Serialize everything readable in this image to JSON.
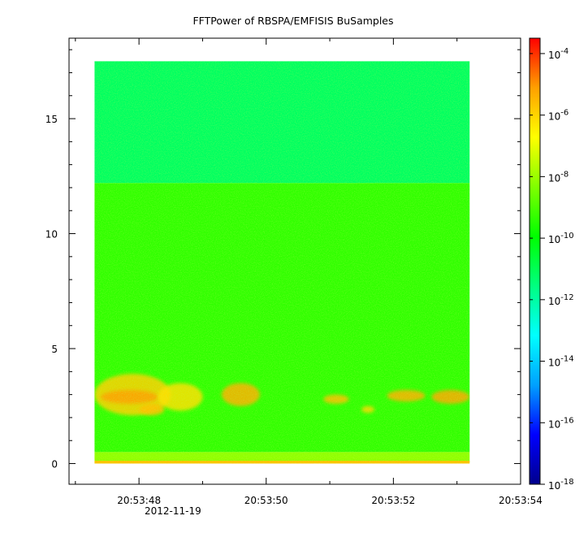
{
  "chart_data": {
    "type": "heatmap",
    "title": "FFTPower of RBSPA/EMFISIS  BuSamples",
    "xlabel": "",
    "ylabel": "",
    "x_date": "2012-11-19",
    "x_range_seconds": [
      46.9,
      54.0
    ],
    "x_ticks": [
      {
        "value": 48,
        "label": "20:53:48"
      },
      {
        "value": 50,
        "label": "20:53:50"
      },
      {
        "value": 52,
        "label": "20:53:52"
      },
      {
        "value": 54,
        "label": "20:53:54"
      }
    ],
    "x_minor_ticks": [
      47,
      49,
      51,
      53
    ],
    "ylim": [
      -0.9,
      18.5
    ],
    "y_ticks": [
      0,
      5,
      10,
      15
    ],
    "data_extent": {
      "x_start": 47.3,
      "x_end": 53.2,
      "y_min": 0,
      "y_max": 17.5
    },
    "colorbar": {
      "scale": "log",
      "range_exponents": [
        -18,
        -3.5
      ],
      "colormap": [
        "#00008c",
        "#0000ff",
        "#00a0ff",
        "#00ffff",
        "#00ff80",
        "#00ff00",
        "#80ff00",
        "#ffff00",
        "#ffa000",
        "#ff0000"
      ],
      "ticks": [
        {
          "exponent": -18,
          "base": "10",
          "exp": "-18"
        },
        {
          "exponent": -16,
          "base": "10",
          "exp": "-16"
        },
        {
          "exponent": -14,
          "base": "10",
          "exp": "-14"
        },
        {
          "exponent": -12,
          "base": "10",
          "exp": "-12"
        },
        {
          "exponent": -10,
          "base": "10",
          "exp": "-10"
        },
        {
          "exponent": -8,
          "base": "10",
          "exp": "-8"
        },
        {
          "exponent": -6,
          "base": "10",
          "exp": "-6"
        },
        {
          "exponent": -4,
          "base": "10",
          "exp": "-4"
        }
      ]
    },
    "bands": [
      {
        "y_range": [
          12.2,
          17.5
        ],
        "log10_power": -11.2,
        "color": "#00ff60"
      },
      {
        "y_range": [
          0.5,
          12.2
        ],
        "log10_power": -10.0,
        "color": "#30ff00"
      },
      {
        "y_range": [
          0.05,
          0.5
        ],
        "log10_power": -9.2,
        "color": "#90ff00"
      },
      {
        "y_range": [
          0.0,
          0.12
        ],
        "log10_power": -7.5,
        "color": "#ffc000"
      }
    ],
    "blobs": [
      {
        "x": [
          47.3,
          48.5
        ],
        "y": [
          2.1,
          3.9
        ],
        "log10_power": -7.2,
        "color": "#ffd000"
      },
      {
        "x": [
          47.4,
          48.3
        ],
        "y": [
          2.6,
          3.2
        ],
        "log10_power": -6.6,
        "color": "#ffa000"
      },
      {
        "x": [
          48.3,
          49.0
        ],
        "y": [
          2.3,
          3.5
        ],
        "log10_power": -7.5,
        "color": "#ffe000"
      },
      {
        "x": [
          49.3,
          49.9
        ],
        "y": [
          2.5,
          3.5
        ],
        "log10_power": -7.0,
        "color": "#ffb000"
      },
      {
        "x": [
          48.0,
          48.4
        ],
        "y": [
          2.1,
          2.6
        ],
        "log10_power": -7.3,
        "color": "#ffc000"
      },
      {
        "x": [
          50.9,
          51.3
        ],
        "y": [
          2.6,
          3.0
        ],
        "log10_power": -7.4,
        "color": "#ffc000"
      },
      {
        "x": [
          51.5,
          51.7
        ],
        "y": [
          2.2,
          2.5
        ],
        "log10_power": -7.8,
        "color": "#ffd800"
      },
      {
        "x": [
          51.9,
          52.5
        ],
        "y": [
          2.7,
          3.2
        ],
        "log10_power": -7.2,
        "color": "#ffb000"
      },
      {
        "x": [
          52.6,
          53.2
        ],
        "y": [
          2.6,
          3.2
        ],
        "log10_power": -7.0,
        "color": "#ffa800"
      }
    ]
  }
}
